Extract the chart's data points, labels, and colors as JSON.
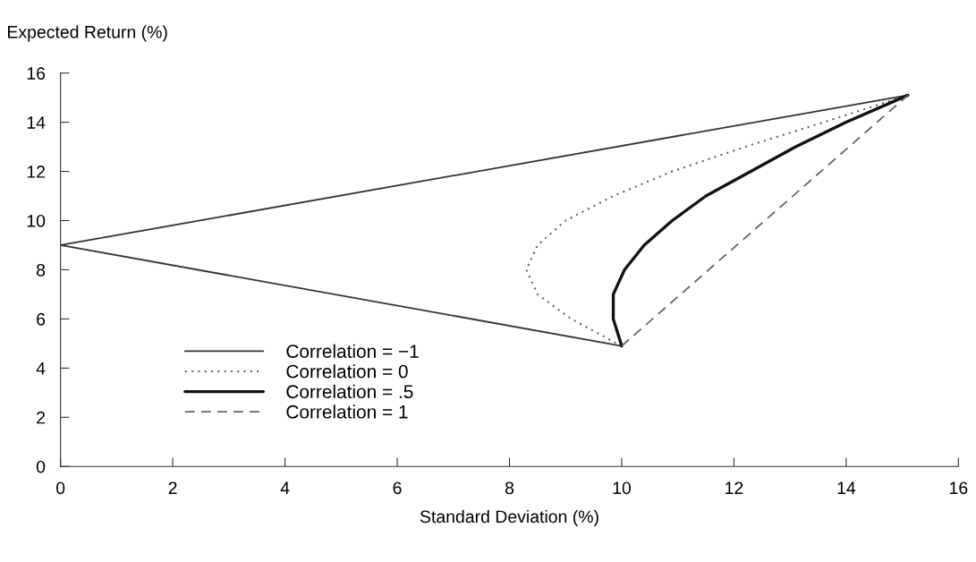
{
  "chart_data": {
    "type": "line",
    "xlabel": "Standard Deviation (%)",
    "ylabel": "Expected Return (%)",
    "xlim": [
      0,
      16
    ],
    "ylim": [
      0,
      16
    ],
    "xticks": [
      0,
      2,
      4,
      6,
      8,
      10,
      12,
      14,
      16
    ],
    "yticks": [
      0,
      2,
      4,
      6,
      8,
      10,
      12,
      14,
      16
    ],
    "grid": false,
    "legend": "bottom left",
    "marker": "none",
    "series": [
      {
        "name": "Correlation = −1",
        "color": "#333333",
        "line_style": "solid",
        "x": [
          10,
          0,
          15.1
        ],
        "values": [
          4.9,
          9,
          15.1
        ]
      },
      {
        "name": "Correlation = 0",
        "color": "#666666",
        "line_style": "dotted",
        "x": [
          10,
          9.1,
          8.5,
          8.3,
          8.5,
          9,
          9.85,
          10.9,
          12.2,
          13.6,
          15.1
        ],
        "values": [
          4.9,
          6,
          7,
          8,
          9,
          10,
          11,
          12,
          13,
          14,
          15.1
        ]
      },
      {
        "name": "Correlation = .5",
        "color": "#111111",
        "line_style": "solid",
        "x": [
          10,
          9.85,
          9.85,
          10.05,
          10.4,
          10.9,
          11.5,
          12.3,
          13.1,
          14,
          15.1
        ],
        "values": [
          4.9,
          6,
          7,
          8,
          9,
          10,
          11,
          12,
          13,
          14,
          15.1
        ]
      },
      {
        "name": "Correlation = 1",
        "color": "#666666",
        "line_style": "dashed",
        "x": [
          10,
          15.1
        ],
        "values": [
          4.9,
          15.1
        ]
      }
    ]
  }
}
